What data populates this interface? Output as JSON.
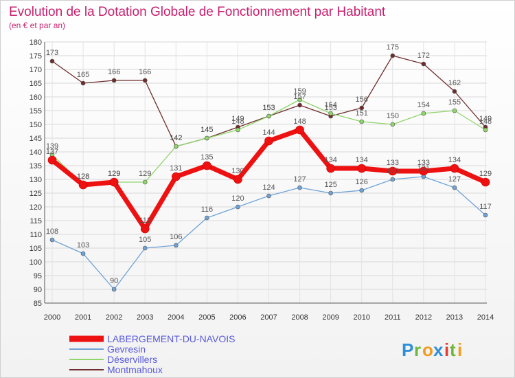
{
  "chart_data": {
    "type": "line",
    "title": "Evolution de la Dotation Globale de Fonctionnement par Habitant",
    "subtitle": "(en € et par an)",
    "x": [
      "2000",
      "2001",
      "2002",
      "2003",
      "2004",
      "2005",
      "2006",
      "2007",
      "2008",
      "2009",
      "2010",
      "2011",
      "2012",
      "2013",
      "2014"
    ],
    "ylim": [
      85,
      180
    ],
    "yticks": [
      85,
      90,
      95,
      100,
      105,
      110,
      115,
      120,
      125,
      130,
      135,
      140,
      145,
      150,
      155,
      160,
      165,
      170,
      175,
      180
    ],
    "grid": true,
    "legend_position": "bottom-left",
    "series": [
      {
        "name": "LABERGEMENT-DU-NAVOIS",
        "color": "#ee1111",
        "values": [
          137,
          128,
          129,
          112,
          131,
          135,
          130,
          144,
          148,
          134,
          134,
          133,
          133,
          134,
          129
        ]
      },
      {
        "name": "Gevresin",
        "color": "#6fa3d6",
        "values": [
          108,
          103,
          90,
          105,
          106,
          116,
          120,
          124,
          127,
          125,
          126,
          130,
          131,
          127,
          117
        ]
      },
      {
        "name": "Déservillers",
        "color": "#8fd66a",
        "values": [
          139,
          128,
          129,
          129,
          142,
          145,
          148,
          153,
          159,
          154,
          151,
          150,
          154,
          155,
          148
        ]
      },
      {
        "name": "Montmahoux",
        "color": "#6e2c2c",
        "values": [
          173,
          165,
          166,
          166,
          142,
          145,
          149,
          153,
          157,
          153,
          156,
          175,
          172,
          162,
          149
        ]
      }
    ]
  },
  "logo": {
    "letters": [
      "P",
      "r",
      "o",
      "x",
      "i",
      "t",
      "i"
    ],
    "colors": [
      "#2d8fd8",
      "#6cb83a",
      "#f29c1f",
      "#2d8fd8",
      "#e63b2e",
      "#6cb83a",
      "#f29c1f"
    ]
  }
}
